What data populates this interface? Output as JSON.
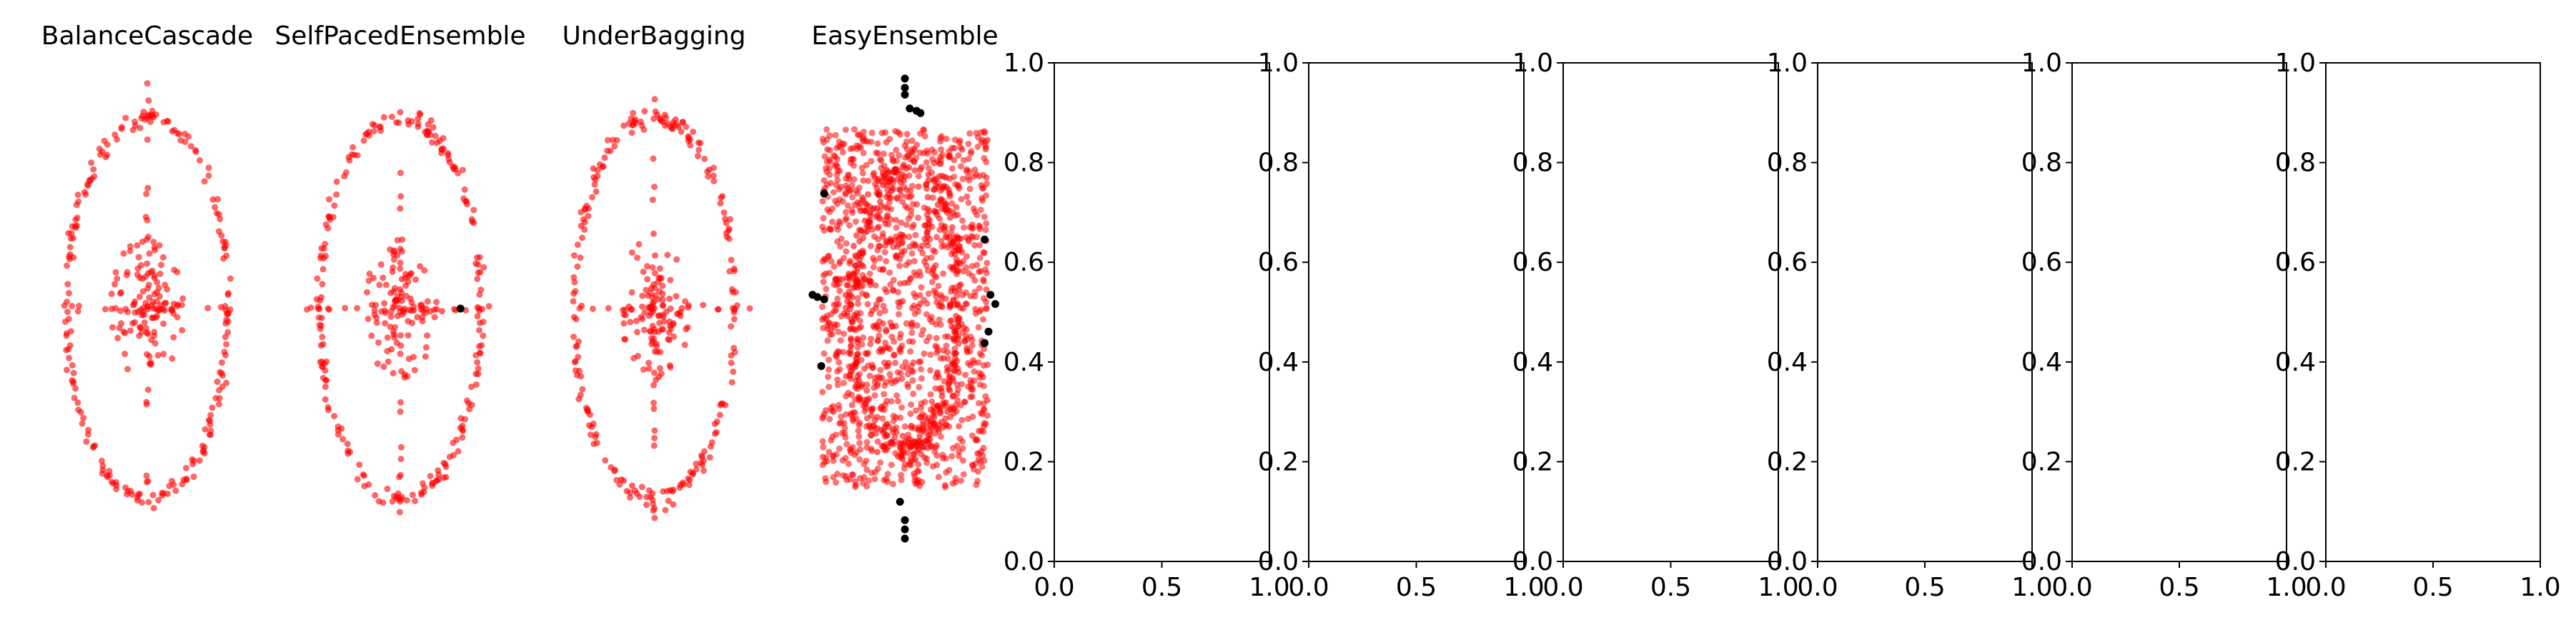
{
  "figure": {
    "scatter_titles": [
      "BalanceCascade",
      "SelfPacedEnsemble",
      "UnderBagging",
      "EasyEnsemble"
    ]
  },
  "colors": {
    "majority_points": "#ff0000",
    "minority_points": "#000000",
    "axes": "#000000",
    "background": "#ffffff"
  },
  "chart_data": [
    {
      "type": "scatter",
      "title": "BalanceCascade",
      "axis": "off",
      "grid": false,
      "series": [
        {
          "color": "#ff0000",
          "pattern": "rings",
          "count": 360
        }
      ]
    },
    {
      "type": "scatter",
      "title": "SelfPacedEnsemble",
      "axis": "off",
      "grid": false,
      "series": [
        {
          "color": "#ff0000",
          "pattern": "rings",
          "count": 360
        },
        {
          "color": "#000000",
          "points": [
            [
              0.62,
              0.0
            ]
          ]
        }
      ]
    },
    {
      "type": "scatter",
      "title": "UnderBagging",
      "axis": "off",
      "grid": false,
      "series": [
        {
          "color": "#ff0000",
          "pattern": "rings",
          "count": 360
        }
      ]
    },
    {
      "type": "scatter",
      "title": "EasyEnsemble",
      "axis": "off",
      "grid": false,
      "series": [
        {
          "color": "#ff0000",
          "pattern": "dense-rectangle",
          "count": 1300
        },
        {
          "color": "#000000",
          "points": [
            [
              0.0,
              1.0
            ],
            [
              0.0,
              0.96
            ],
            [
              0.0,
              0.93
            ],
            [
              0.05,
              0.87
            ],
            [
              0.12,
              0.86
            ],
            [
              0.16,
              0.85
            ],
            [
              -0.83,
              0.5
            ],
            [
              -0.9,
              0.05
            ],
            [
              -0.95,
              0.06
            ],
            [
              -0.83,
              0.04
            ],
            [
              -0.86,
              -0.25
            ],
            [
              0.82,
              0.3
            ],
            [
              0.88,
              0.06
            ],
            [
              0.93,
              0.02
            ],
            [
              0.86,
              -0.1
            ],
            [
              0.82,
              -0.15
            ],
            [
              0.0,
              -0.92
            ],
            [
              0.0,
              -0.96
            ],
            [
              0.0,
              -1.0
            ],
            [
              -0.05,
              -0.84
            ]
          ]
        }
      ]
    },
    {
      "type": "scatter",
      "title": "",
      "xlim": [
        0.0,
        1.0
      ],
      "ylim": [
        0.0,
        1.0
      ],
      "grid": false,
      "xticks": [
        "0.0",
        "0.5",
        "1.0"
      ],
      "yticks": [
        "0.0",
        "0.2",
        "0.4",
        "0.6",
        "0.8",
        "1.0"
      ],
      "series": []
    },
    {
      "type": "scatter",
      "title": "",
      "xlim": [
        0.0,
        1.0
      ],
      "ylim": [
        0.0,
        1.0
      ],
      "grid": false,
      "xticks": [
        "0.0",
        "0.5",
        "1.0"
      ],
      "yticks": [
        "0.0",
        "0.2",
        "0.4",
        "0.6",
        "0.8",
        "1.0"
      ],
      "series": []
    },
    {
      "type": "scatter",
      "title": "",
      "xlim": [
        0.0,
        1.0
      ],
      "ylim": [
        0.0,
        1.0
      ],
      "grid": false,
      "xticks": [
        "0.0",
        "0.5",
        "1.0"
      ],
      "yticks": [
        "0.0",
        "0.2",
        "0.4",
        "0.6",
        "0.8",
        "1.0"
      ],
      "series": []
    },
    {
      "type": "scatter",
      "title": "",
      "xlim": [
        0.0,
        1.0
      ],
      "ylim": [
        0.0,
        1.0
      ],
      "grid": false,
      "xticks": [
        "0.0",
        "0.5",
        "1.0"
      ],
      "yticks": [
        "0.0",
        "0.2",
        "0.4",
        "0.6",
        "0.8",
        "1.0"
      ],
      "series": []
    },
    {
      "type": "scatter",
      "title": "",
      "xlim": [
        0.0,
        1.0
      ],
      "ylim": [
        0.0,
        1.0
      ],
      "grid": false,
      "xticks": [
        "0.0",
        "0.5",
        "1.0"
      ],
      "yticks": [
        "0.0",
        "0.2",
        "0.4",
        "0.6",
        "0.8",
        "1.0"
      ],
      "series": []
    },
    {
      "type": "scatter",
      "title": "",
      "xlim": [
        0.0,
        1.0
      ],
      "ylim": [
        0.0,
        1.0
      ],
      "grid": false,
      "xticks": [
        "0.0",
        "0.5",
        "1.0"
      ],
      "yticks": [
        "0.0",
        "0.2",
        "0.4",
        "0.6",
        "0.8",
        "1.0"
      ],
      "series": []
    }
  ]
}
